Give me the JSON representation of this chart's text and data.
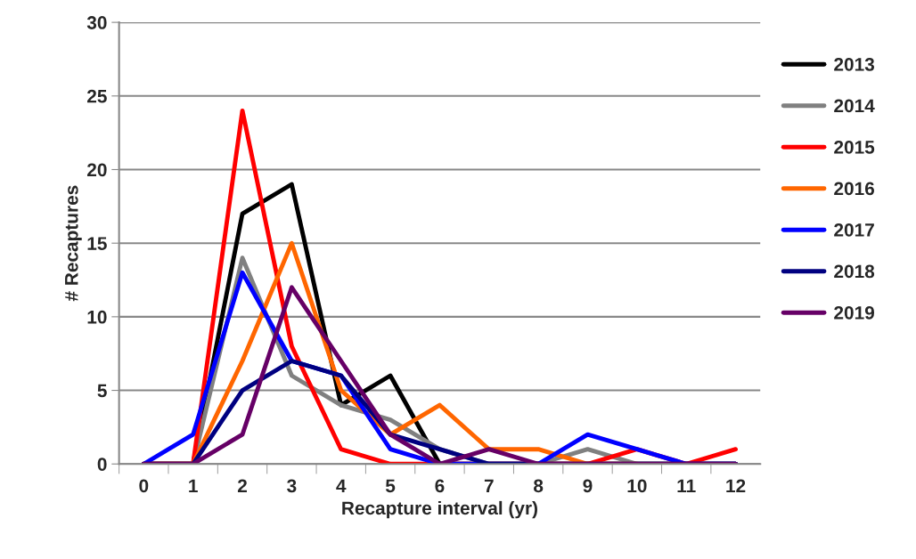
{
  "chart_data": {
    "type": "line",
    "xlabel": "Recapture interval (yr)",
    "ylabel": "# Recaptures",
    "categories": [
      "0",
      "1",
      "2",
      "3",
      "4",
      "5",
      "6",
      "7",
      "8",
      "9",
      "10",
      "11",
      "12"
    ],
    "series": [
      {
        "name": "2013",
        "color": "#000000",
        "values": [
          0,
          0,
          17,
          19,
          4,
          6,
          0,
          0,
          0,
          0,
          0,
          0,
          0
        ]
      },
      {
        "name": "2014",
        "color": "#808080",
        "values": [
          0,
          0,
          14,
          6,
          4,
          3,
          1,
          0,
          0,
          1,
          0,
          0,
          0
        ]
      },
      {
        "name": "2015",
        "color": "#ff0000",
        "values": [
          0,
          0,
          24,
          8,
          1,
          0,
          0,
          0,
          0,
          0,
          1,
          0,
          1
        ]
      },
      {
        "name": "2016",
        "color": "#ff6600",
        "values": [
          0,
          0,
          7,
          15,
          5,
          2,
          4,
          1,
          1,
          0,
          0,
          null,
          null
        ]
      },
      {
        "name": "2017",
        "color": "#0000ff",
        "values": [
          0,
          2,
          13,
          7,
          6,
          1,
          0,
          0,
          0,
          2,
          1,
          0,
          0
        ]
      },
      {
        "name": "2018",
        "color": "#000080",
        "values": [
          0,
          0,
          5,
          7,
          6,
          2,
          1,
          0,
          0,
          0,
          0,
          0,
          0
        ]
      },
      {
        "name": "2019",
        "color": "#660066",
        "values": [
          0,
          0,
          2,
          12,
          7,
          2,
          0,
          1,
          0,
          0,
          0,
          0,
          0
        ]
      }
    ],
    "ylim": [
      0,
      30
    ],
    "yticks": [
      0,
      5,
      10,
      15,
      20,
      25,
      30
    ],
    "grid": "y",
    "legend": "right",
    "marker": "none",
    "line_style": "solid"
  }
}
